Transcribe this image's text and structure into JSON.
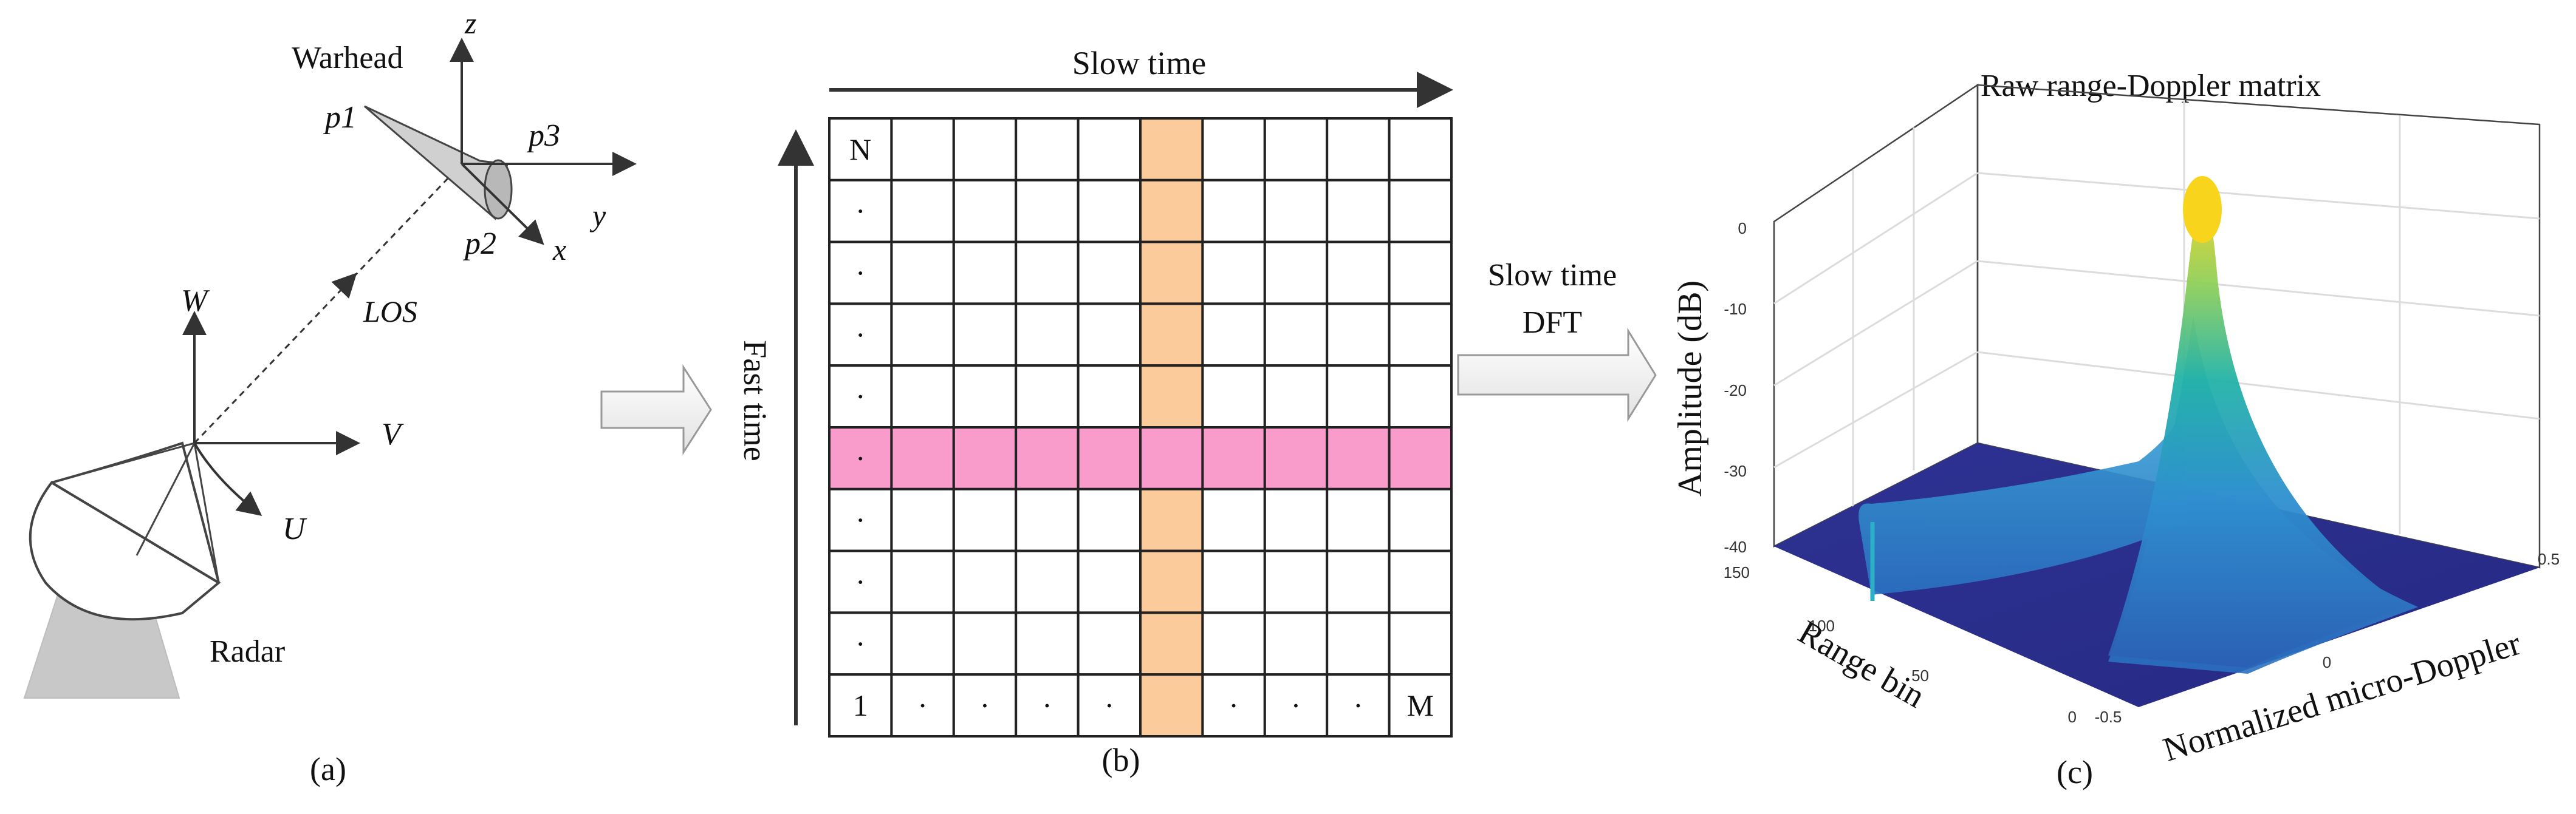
{
  "panel_a": {
    "caption": "(a)",
    "warhead_label": "Warhead",
    "radar_label": "Radar",
    "los_label": "LOS",
    "axis_w": "W",
    "axis_v": "V",
    "axis_u": "U",
    "axis_z": "z",
    "axis_y": "y",
    "axis_x": "x",
    "point_p1": "p1",
    "point_p2": "p2",
    "point_p3": "p3"
  },
  "panel_b": {
    "caption": "(b)",
    "slow_time_label": "Slow time",
    "fast_time_label": "Fast time",
    "cell_n": "N",
    "cell_1": "1",
    "cell_m": "M",
    "dot": "·",
    "rows": 10,
    "cols": 10,
    "highlight_column": 6,
    "highlight_row": 6,
    "column_color": "#fbcb9b",
    "row_color": "#f99ccb"
  },
  "transform": {
    "line1": "Slow time",
    "line2": "DFT"
  },
  "panel_c": {
    "caption": "(c)",
    "title": "Raw range-Doppler matrix",
    "z_label": "Amplitude (dB)",
    "x_label": "Normalized micro-Doppler",
    "y_label": "Range bin",
    "z_ticks": [
      "0",
      "-10",
      "-20",
      "-30",
      "-40"
    ],
    "x_ticks": [
      "-0.5",
      "0",
      "0.5"
    ],
    "y_ticks": [
      "0",
      "50",
      "100",
      "150"
    ],
    "colors": {
      "floor": "#2b2f8c",
      "low": "#2f7dc4",
      "mid": "#20b2a4",
      "high": "#f6d31a"
    }
  }
}
